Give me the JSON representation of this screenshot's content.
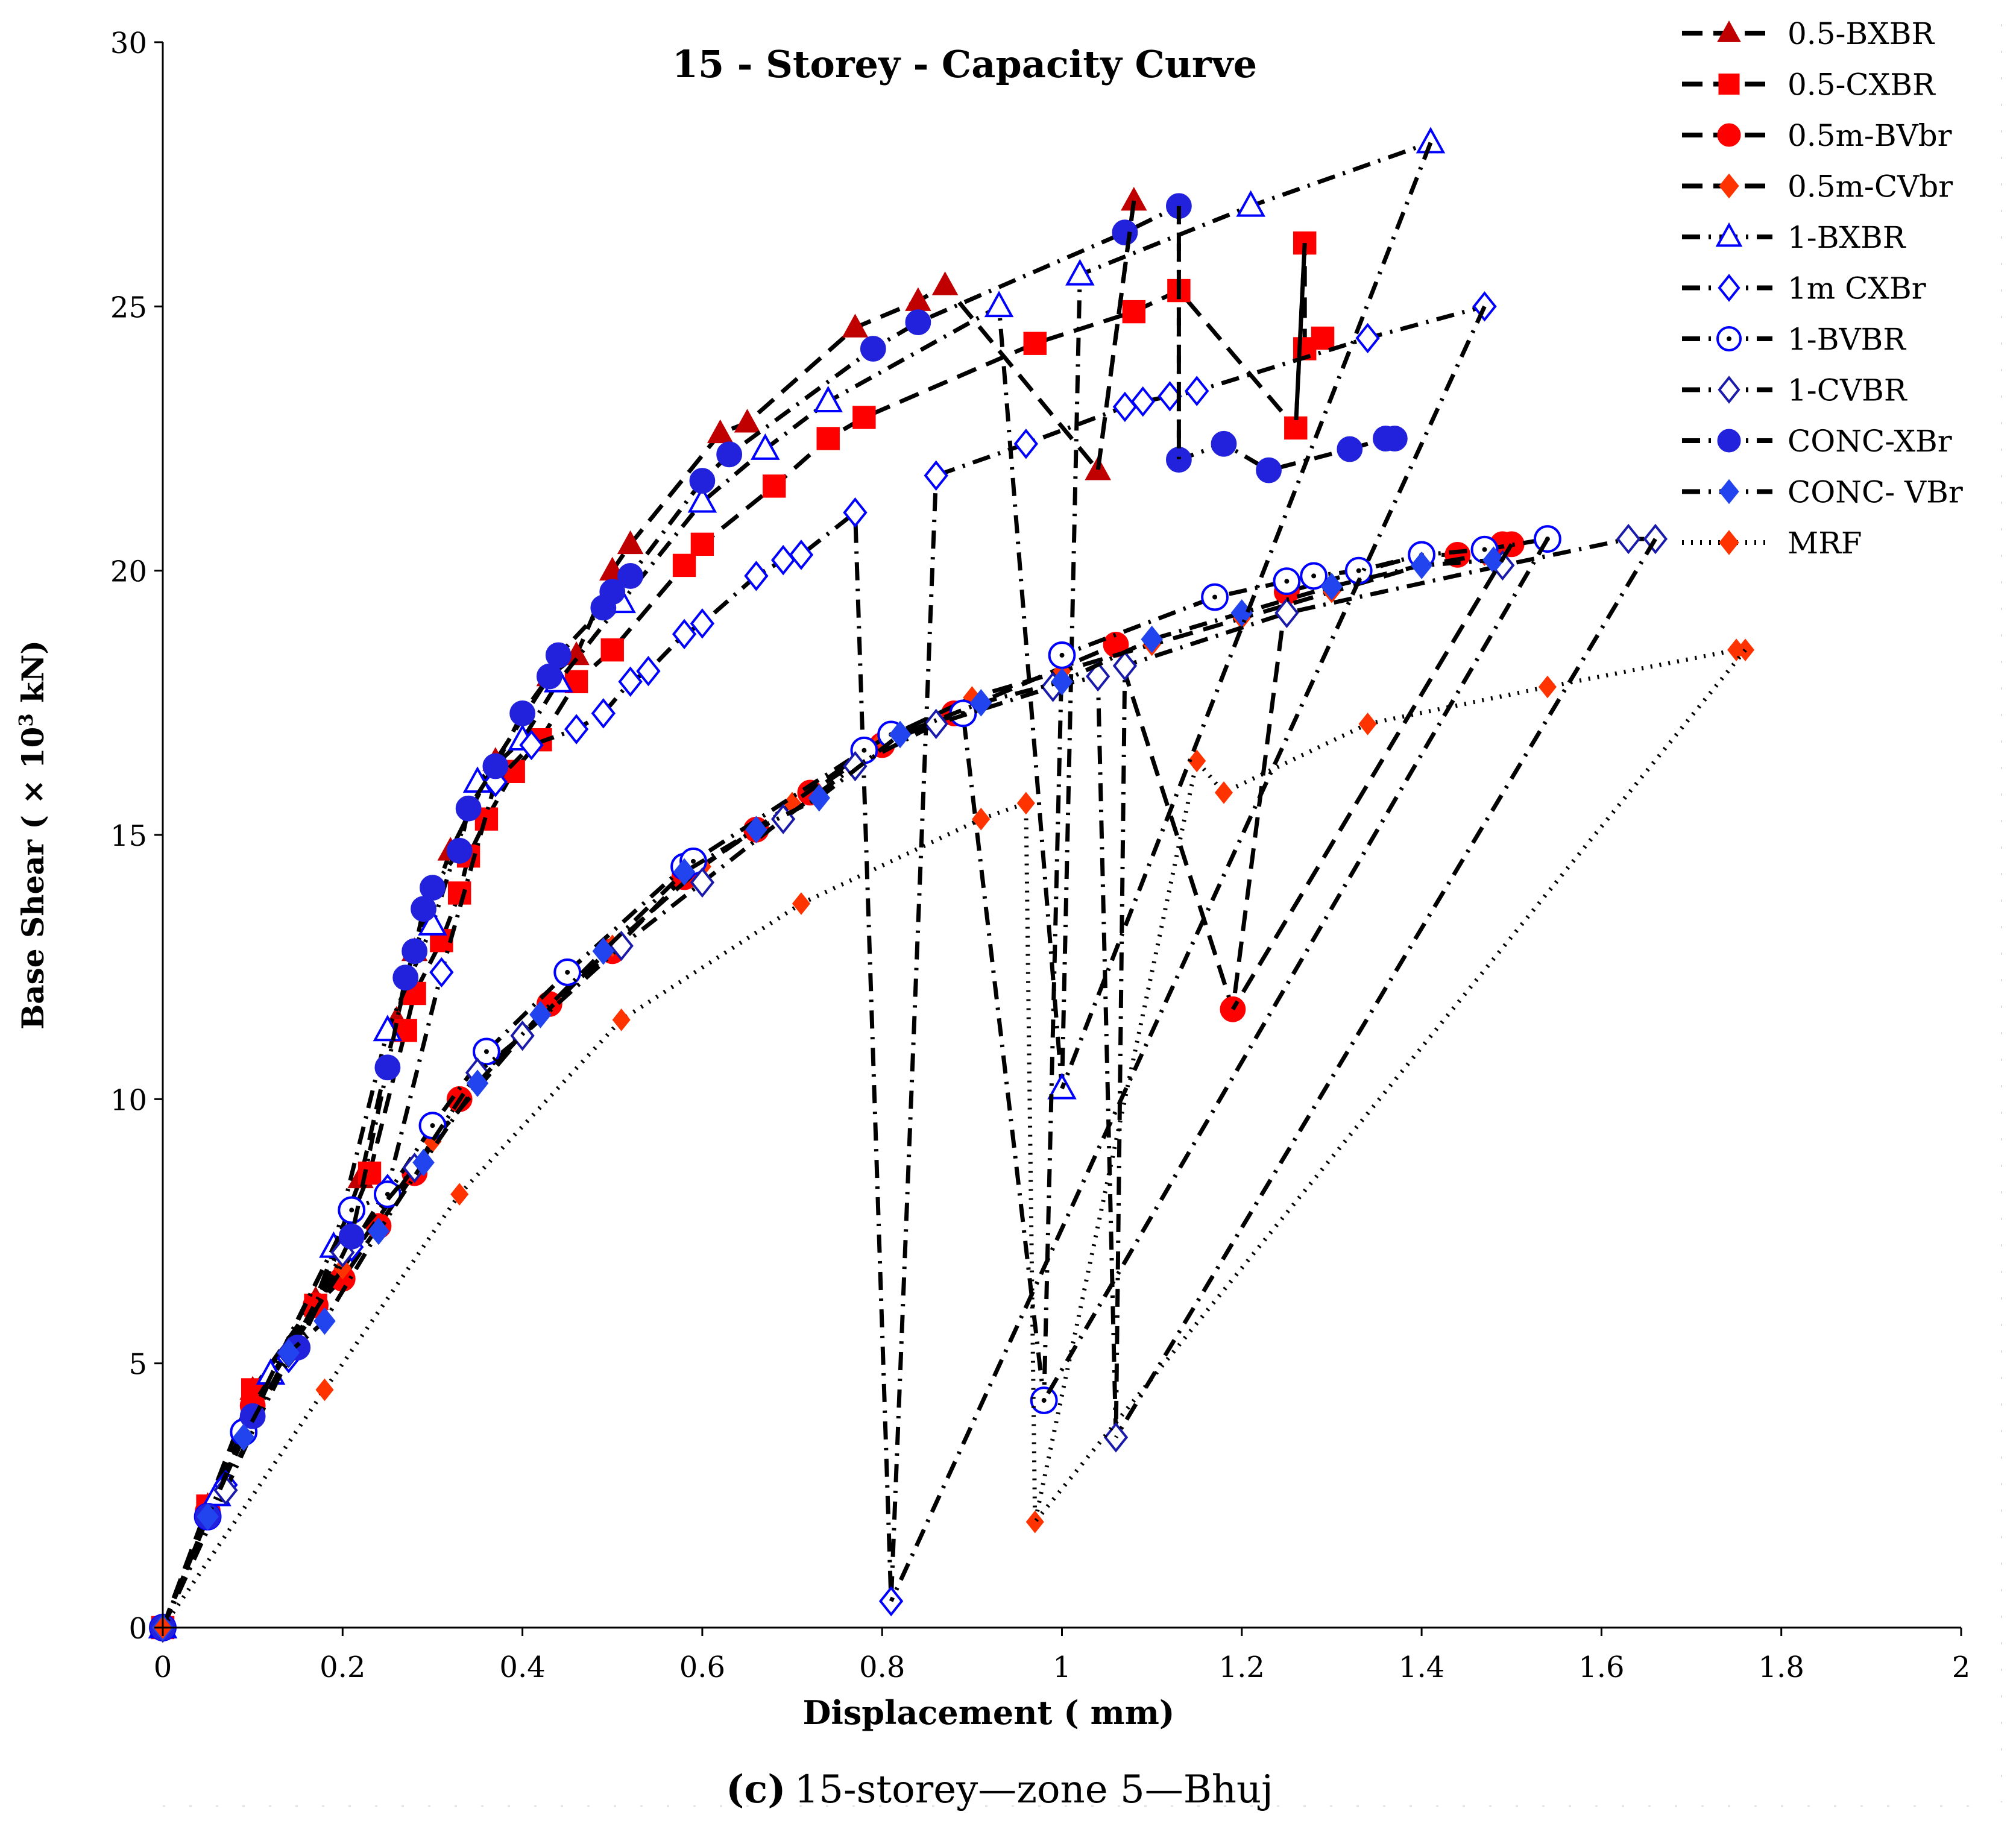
{
  "caption": {
    "letter": "(c)",
    "text": "15-storey—zone 5—Bhuj"
  },
  "chart_data": {
    "type": "line",
    "title": "15 - Storey - Capacity Curve",
    "xlabel": "Displacement ( mm)",
    "ylabel_main": "Base Shear ( × 10",
    "ylabel_sup": "3",
    "ylabel_end": " kN)",
    "xlim": [
      0,
      2
    ],
    "ylim": [
      0,
      30
    ],
    "xticks": [
      0,
      0.2,
      0.4,
      0.6,
      0.8,
      1,
      1.2,
      1.4,
      1.6,
      1.8,
      2
    ],
    "xtick_labels": [
      "0",
      "0.2",
      "0.4",
      "0.6",
      "0.8",
      "1",
      "1.2",
      "1.4",
      "1.6",
      "1.8",
      "2"
    ],
    "yticks": [
      0,
      5,
      10,
      15,
      20,
      25,
      30
    ],
    "ytick_labels": [
      "0",
      "5",
      "10",
      "15",
      "20",
      "25",
      "30"
    ],
    "legend_position": "top-right",
    "series": [
      {
        "name": "0.5-BXBR",
        "color": "#c00000",
        "marker": "triangle",
        "filled": true,
        "line": "dash",
        "points": [
          [
            0,
            0
          ],
          [
            0.05,
            2.3
          ],
          [
            0.1,
            4.5
          ],
          [
            0.17,
            6.2
          ],
          [
            0.22,
            8.5
          ],
          [
            0.26,
            11.5
          ],
          [
            0.28,
            12.8
          ],
          [
            0.32,
            14.7
          ],
          [
            0.37,
            16.4
          ],
          [
            0.43,
            18
          ],
          [
            0.46,
            18.4
          ],
          [
            0.5,
            20
          ],
          [
            0.52,
            20.5
          ],
          [
            0.62,
            22.6
          ],
          [
            0.65,
            22.8
          ],
          [
            0.77,
            24.6
          ],
          [
            0.84,
            25.1
          ],
          [
            0.87,
            25.4
          ],
          [
            1.08,
            27
          ],
          [
            1.04,
            21.9
          ]
        ]
      },
      {
        "name": "0.5-CXBR",
        "color": "#ff0000",
        "marker": "square",
        "filled": true,
        "line": "dash",
        "points": [
          [
            0,
            0
          ],
          [
            0.05,
            2.3
          ],
          [
            0.1,
            4.5
          ],
          [
            0.17,
            6.1
          ],
          [
            0.23,
            8.6
          ],
          [
            0.27,
            11.3
          ],
          [
            0.28,
            12
          ],
          [
            0.31,
            13
          ],
          [
            0.33,
            13.9
          ],
          [
            0.34,
            14.6
          ],
          [
            0.36,
            15.3
          ],
          [
            0.39,
            16.2
          ],
          [
            0.42,
            16.8
          ],
          [
            0.46,
            17.9
          ],
          [
            0.5,
            18.5
          ],
          [
            0.58,
            20.1
          ],
          [
            0.6,
            20.5
          ],
          [
            0.68,
            21.6
          ],
          [
            0.74,
            22.5
          ],
          [
            0.78,
            22.9
          ],
          [
            0.97,
            24.3
          ],
          [
            1.08,
            24.9
          ],
          [
            1.13,
            25.3
          ],
          [
            1.27,
            26.2
          ],
          [
            1.27,
            24.2
          ],
          [
            1.29,
            24.4
          ],
          [
            1.26,
            22.7
          ]
        ]
      },
      {
        "name": "0.5m-BVbr",
        "color": "#ff0000",
        "marker": "circle",
        "filled": true,
        "line": "dash",
        "points": [
          [
            0,
            0
          ],
          [
            0.05,
            2.2
          ],
          [
            0.1,
            4.2
          ],
          [
            0.17,
            6.1
          ],
          [
            0.2,
            6.6
          ],
          [
            0.24,
            7.6
          ],
          [
            0.28,
            8.6
          ],
          [
            0.33,
            10
          ],
          [
            0.43,
            11.8
          ],
          [
            0.5,
            12.8
          ],
          [
            0.58,
            14.2
          ],
          [
            0.66,
            15.1
          ],
          [
            0.72,
            15.8
          ],
          [
            0.8,
            16.7
          ],
          [
            0.88,
            17.3
          ],
          [
            1.06,
            18.6
          ],
          [
            1.25,
            19.6
          ],
          [
            1.4,
            20.3
          ],
          [
            1.44,
            20.3
          ],
          [
            1.49,
            20.5
          ],
          [
            1.5,
            20.5
          ],
          [
            1.19,
            11.7
          ]
        ]
      },
      {
        "name": "0.5m-CVbr",
        "color": "#ff3300",
        "marker": "diamond",
        "filled": true,
        "line": "dash",
        "points": [
          [
            0,
            0
          ],
          [
            0.06,
            2.5
          ],
          [
            0.12,
            4.7
          ],
          [
            0.2,
            6.8
          ],
          [
            0.3,
            9.2
          ],
          [
            0.4,
            11.2
          ],
          [
            0.5,
            12.9
          ],
          [
            0.6,
            14.4
          ],
          [
            0.7,
            15.6
          ],
          [
            0.8,
            16.8
          ],
          [
            0.9,
            17.6
          ],
          [
            1.0,
            18.1
          ],
          [
            1.1,
            18.6
          ],
          [
            1.2,
            19.1
          ],
          [
            1.3,
            19.6
          ],
          [
            1.4,
            20.1
          ],
          [
            1.47,
            20.3
          ]
        ]
      },
      {
        "name": "1-BXBR",
        "color": "#0000ff",
        "marker": "triangle",
        "filled": false,
        "line": "dashdot",
        "points": [
          [
            0,
            0
          ],
          [
            0.06,
            2.5
          ],
          [
            0.12,
            4.8
          ],
          [
            0.19,
            7.2
          ],
          [
            0.25,
            11.3
          ],
          [
            0.3,
            13.3
          ],
          [
            0.35,
            16
          ],
          [
            0.4,
            16.8
          ],
          [
            0.44,
            17.9
          ],
          [
            0.51,
            19.4
          ],
          [
            0.6,
            21.3
          ],
          [
            0.67,
            22.3
          ],
          [
            0.74,
            23.2
          ],
          [
            0.93,
            25
          ],
          [
            1.02,
            25.6
          ],
          [
            1.21,
            26.9
          ],
          [
            1.41,
            28.1
          ],
          [
            1.0,
            10.2
          ]
        ]
      },
      {
        "name": "1m CXBr",
        "color": "#0000ff",
        "marker": "diamond",
        "filled": false,
        "line": "dashdot",
        "points": [
          [
            0,
            0
          ],
          [
            0.07,
            2.7
          ],
          [
            0.14,
            5.1
          ],
          [
            0.21,
            7.2
          ],
          [
            0.25,
            8.3
          ],
          [
            0.31,
            12.4
          ],
          [
            0.37,
            16
          ],
          [
            0.41,
            16.7
          ],
          [
            0.46,
            17
          ],
          [
            0.49,
            17.3
          ],
          [
            0.52,
            17.9
          ],
          [
            0.54,
            18.1
          ],
          [
            0.58,
            18.8
          ],
          [
            0.6,
            19
          ],
          [
            0.66,
            19.9
          ],
          [
            0.69,
            20.2
          ],
          [
            0.71,
            20.3
          ],
          [
            0.77,
            21.1
          ],
          [
            0.86,
            21.8
          ],
          [
            0.96,
            22.4
          ],
          [
            1.07,
            23.1
          ],
          [
            1.09,
            23.2
          ],
          [
            1.12,
            23.3
          ],
          [
            1.15,
            23.4
          ],
          [
            1.47,
            25
          ],
          [
            1.34,
            24.4
          ],
          [
            0.81,
            0.5
          ]
        ]
      },
      {
        "name": "1-BVBR",
        "color": "#0000ff",
        "marker": "circle",
        "filled": false,
        "line": "dashdot",
        "points": [
          [
            0,
            0
          ],
          [
            0.05,
            2.1
          ],
          [
            0.09,
            3.7
          ],
          [
            0.21,
            7.9
          ],
          [
            0.25,
            8.2
          ],
          [
            0.3,
            9.5
          ],
          [
            0.36,
            10.9
          ],
          [
            0.45,
            12.4
          ],
          [
            0.58,
            14.4
          ],
          [
            0.59,
            14.5
          ],
          [
            0.78,
            16.6
          ],
          [
            0.81,
            16.9
          ],
          [
            0.89,
            17.3
          ],
          [
            1.0,
            18.4
          ],
          [
            1.17,
            19.5
          ],
          [
            1.25,
            19.8
          ],
          [
            1.28,
            19.9
          ],
          [
            1.33,
            20
          ],
          [
            1.4,
            20.3
          ],
          [
            1.47,
            20.4
          ],
          [
            1.54,
            20.6
          ],
          [
            0.98,
            4.3
          ]
        ]
      },
      {
        "name": "1-CVBR",
        "color": "#1a1aaa",
        "marker": "diamond",
        "filled": false,
        "line": "dashdot",
        "points": [
          [
            0,
            0
          ],
          [
            0.07,
            2.6
          ],
          [
            0.14,
            5.2
          ],
          [
            0.2,
            7.1
          ],
          [
            0.28,
            8.7
          ],
          [
            0.35,
            10.5
          ],
          [
            0.4,
            11.2
          ],
          [
            0.51,
            12.9
          ],
          [
            0.6,
            14.1
          ],
          [
            0.69,
            15.3
          ],
          [
            0.77,
            16.3
          ],
          [
            0.86,
            17.1
          ],
          [
            0.99,
            17.8
          ],
          [
            1.04,
            18
          ],
          [
            1.07,
            18.2
          ],
          [
            1.25,
            19.2
          ],
          [
            1.49,
            20.1
          ],
          [
            1.63,
            20.6
          ],
          [
            1.66,
            20.6
          ],
          [
            1.06,
            3.6
          ]
        ]
      },
      {
        "name": "CONC-XBr",
        "color": "#2222dd",
        "marker": "circle",
        "filled": true,
        "line": "dashdot",
        "points": [
          [
            0,
            0
          ],
          [
            0.05,
            2.1
          ],
          [
            0.1,
            4
          ],
          [
            0.15,
            5.3
          ],
          [
            0.21,
            7.4
          ],
          [
            0.25,
            10.6
          ],
          [
            0.27,
            12.3
          ],
          [
            0.28,
            12.8
          ],
          [
            0.29,
            13.6
          ],
          [
            0.3,
            14
          ],
          [
            0.33,
            14.7
          ],
          [
            0.34,
            15.5
          ],
          [
            0.37,
            16.3
          ],
          [
            0.4,
            17.3
          ],
          [
            0.43,
            18
          ],
          [
            0.44,
            18.4
          ],
          [
            0.49,
            19.3
          ],
          [
            0.5,
            19.6
          ],
          [
            0.52,
            19.9
          ],
          [
            0.6,
            21.7
          ],
          [
            0.63,
            22.2
          ],
          [
            0.79,
            24.2
          ],
          [
            0.84,
            24.7
          ],
          [
            1.07,
            26.4
          ],
          [
            1.13,
            26.9
          ],
          [
            1.13,
            22.1
          ],
          [
            1.18,
            22.4
          ],
          [
            1.23,
            21.9
          ],
          [
            1.32,
            22.3
          ],
          [
            1.36,
            22.5
          ],
          [
            1.37,
            22.5
          ]
        ]
      },
      {
        "name": "CONC- VBr",
        "color": "#2244ee",
        "marker": "diamond",
        "filled": true,
        "line": "dashdot",
        "points": [
          [
            0,
            0
          ],
          [
            0.05,
            2.1
          ],
          [
            0.09,
            3.6
          ],
          [
            0.14,
            5.2
          ],
          [
            0.18,
            5.8
          ],
          [
            0.24,
            7.5
          ],
          [
            0.29,
            8.8
          ],
          [
            0.35,
            10.3
          ],
          [
            0.42,
            11.6
          ],
          [
            0.49,
            12.8
          ],
          [
            0.58,
            14.3
          ],
          [
            0.66,
            15.1
          ],
          [
            0.73,
            15.7
          ],
          [
            0.82,
            16.9
          ],
          [
            0.91,
            17.5
          ],
          [
            1.0,
            17.9
          ],
          [
            1.1,
            18.7
          ],
          [
            1.2,
            19.2
          ],
          [
            1.3,
            19.7
          ],
          [
            1.4,
            20.1
          ],
          [
            1.48,
            20.2
          ]
        ]
      },
      {
        "name": "MRF",
        "color": "#ff3300",
        "marker": "diamond",
        "filled": true,
        "line": "dot",
        "points": [
          [
            0,
            0
          ],
          [
            0.18,
            4.5
          ],
          [
            0.33,
            8.2
          ],
          [
            0.51,
            11.5
          ],
          [
            0.71,
            13.7
          ],
          [
            0.91,
            15.3
          ],
          [
            0.96,
            15.6
          ],
          [
            1.15,
            16.4
          ],
          [
            1.34,
            17.1
          ],
          [
            1.54,
            17.8
          ],
          [
            1.75,
            18.5
          ],
          [
            1.76,
            18.5
          ],
          [
            1.18,
            15.8
          ],
          [
            0.97,
            2
          ]
        ]
      }
    ],
    "unloading_lines": [
      {
        "series": "1-BXBR",
        "from": [
          1.41,
          28.1
        ],
        "to": [
          1.0,
          10.2
        ]
      },
      {
        "series": "1m CXBr",
        "from": [
          1.47,
          25.0
        ],
        "to": [
          0.81,
          0.5
        ]
      },
      {
        "series": "1-BVBR",
        "from": [
          1.54,
          20.6
        ],
        "to": [
          0.98,
          4.3
        ]
      },
      {
        "series": "1-CVBR",
        "from": [
          1.66,
          20.6
        ],
        "to": [
          1.06,
          3.6
        ]
      },
      {
        "series": "0.5m-BVbr",
        "from": [
          1.5,
          20.5
        ],
        "to": [
          1.19,
          11.7
        ]
      },
      {
        "series": "MRF",
        "from": [
          1.76,
          18.5
        ],
        "to": [
          0.97,
          2.0
        ]
      },
      {
        "series": "0.5-BXBR",
        "from": [
          1.08,
          27.0
        ],
        "to": [
          1.04,
          21.9
        ]
      },
      {
        "series": "0.5-CXBR",
        "from": [
          1.27,
          26.2
        ],
        "to": [
          1.26,
          22.7
        ]
      },
      {
        "series": "CONC-XBr",
        "from": [
          1.13,
          26.9
        ],
        "to": [
          1.13,
          22.1
        ]
      }
    ]
  }
}
